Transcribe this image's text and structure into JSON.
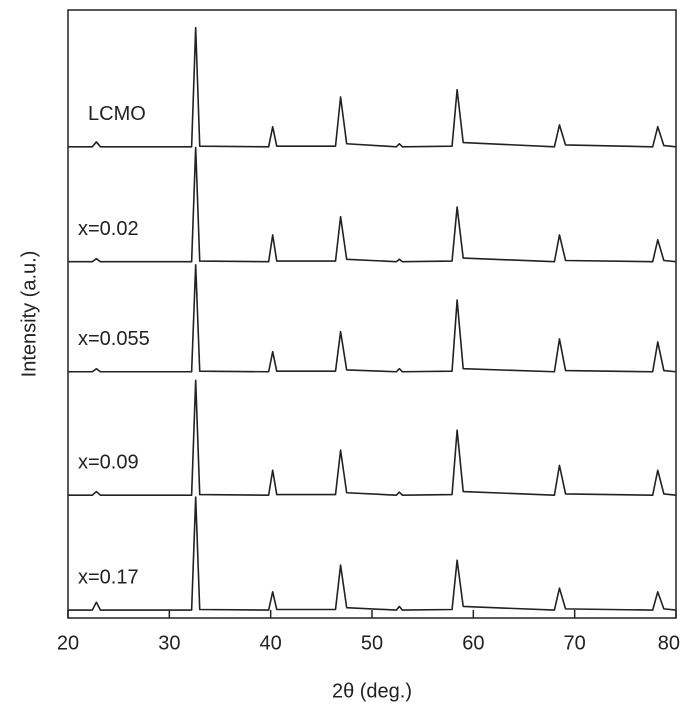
{
  "chart_data": {
    "type": "line",
    "xlabel": "2θ (deg.)",
    "ylabel": "Intensity (a.u.)",
    "x": [
      20,
      22.4,
      22.8,
      23.2,
      32.2,
      32.6,
      33.0,
      39.8,
      40.2,
      40.6,
      46.4,
      46.9,
      47.5,
      52.4,
      52.7,
      53.0,
      57.9,
      58.4,
      59.0,
      68.0,
      68.5,
      69.1,
      77.7,
      78.2,
      78.8,
      80
    ],
    "series": [
      {
        "name": "LCMO",
        "color": "#222222",
        "values": [
          77.5,
          77.5,
          78.3,
          77.5,
          77.5,
          97.1,
          77.6,
          77.5,
          80.8,
          77.6,
          77.6,
          85.7,
          78.0,
          77.5,
          78.0,
          77.5,
          77.6,
          86.9,
          78.2,
          77.5,
          81.1,
          77.8,
          77.5,
          80.8,
          77.7,
          77.5
        ]
      },
      {
        "name": "x=0.02",
        "color": "#222222",
        "values": [
          58.6,
          58.6,
          59.1,
          58.6,
          58.6,
          77.4,
          58.7,
          58.6,
          63.0,
          58.7,
          58.7,
          66.0,
          59.0,
          58.6,
          59.0,
          58.6,
          58.7,
          67.6,
          59.2,
          58.6,
          63.0,
          58.8,
          58.6,
          62.2,
          58.8,
          58.6
        ]
      },
      {
        "name": "x=0.055",
        "color": "#222222",
        "values": [
          40.5,
          40.5,
          41.0,
          40.5,
          40.5,
          58.1,
          40.6,
          40.5,
          43.8,
          40.6,
          40.6,
          47.1,
          40.8,
          40.5,
          41.0,
          40.5,
          40.6,
          52.3,
          41.0,
          40.5,
          45.9,
          40.7,
          40.5,
          45.4,
          40.7,
          40.5
        ]
      },
      {
        "name": "x=0.09",
        "color": "#222222",
        "values": [
          20.2,
          20.2,
          20.8,
          20.2,
          20.2,
          39.1,
          20.3,
          20.2,
          24.3,
          20.3,
          20.3,
          27.6,
          20.6,
          20.2,
          20.7,
          20.2,
          20.3,
          30.9,
          20.8,
          20.2,
          25.1,
          20.4,
          20.2,
          24.3,
          20.4,
          20.2
        ]
      },
      {
        "name": "x=0.17",
        "color": "#222222",
        "values": [
          1.3,
          1.3,
          2.6,
          1.3,
          1.3,
          19.9,
          1.4,
          1.3,
          4.3,
          1.4,
          1.4,
          8.7,
          1.7,
          1.3,
          1.9,
          1.3,
          1.4,
          9.5,
          1.9,
          1.3,
          4.9,
          1.5,
          1.3,
          4.3,
          1.5,
          1.3
        ]
      }
    ],
    "xlim": [
      20,
      80
    ],
    "xticks": [
      20,
      30,
      40,
      50,
      60,
      70,
      80
    ],
    "ylim": [
      0,
      100
    ]
  }
}
